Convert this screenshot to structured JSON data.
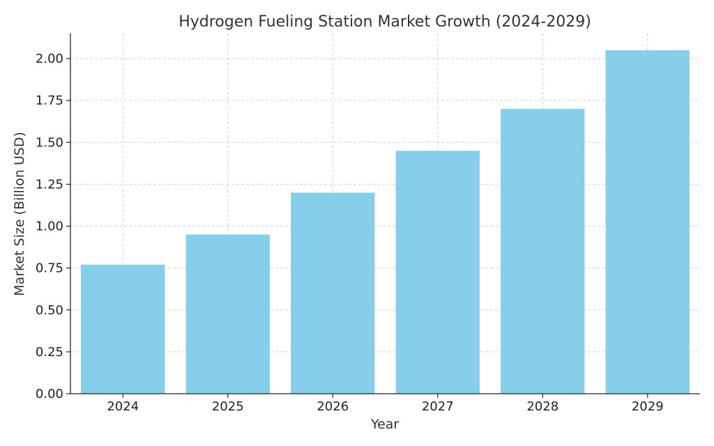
{
  "chart_data": {
    "type": "bar",
    "title": "Hydrogen Fueling Station Market Growth (2024-2029)",
    "xlabel": "Year",
    "ylabel": "Market Size (Billion USD)",
    "categories": [
      "2024",
      "2025",
      "2026",
      "2027",
      "2028",
      "2029"
    ],
    "values": [
      0.77,
      0.95,
      1.2,
      1.45,
      1.7,
      2.05
    ],
    "ylim": [
      0,
      2.15
    ],
    "yticks": [
      0.0,
      0.25,
      0.5,
      0.75,
      1.0,
      1.25,
      1.5,
      1.75,
      2.0
    ],
    "ytick_labels": [
      "0.00",
      "0.25",
      "0.50",
      "0.75",
      "1.00",
      "1.25",
      "1.50",
      "1.75",
      "2.00"
    ],
    "grid": true,
    "bar_color": "#87CEEB"
  }
}
